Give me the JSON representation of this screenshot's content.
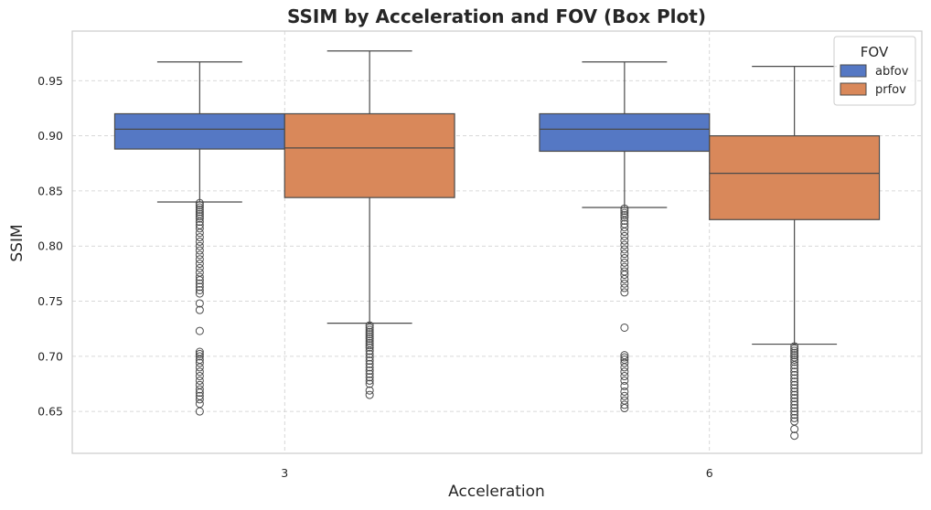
{
  "chart_data": {
    "type": "box",
    "title": "SSIM by Acceleration and FOV (Box Plot)",
    "xlabel": "Acceleration",
    "ylabel": "SSIM",
    "categories": [
      "3",
      "6"
    ],
    "ylim": [
      0.612,
      0.995
    ],
    "yticks": [
      0.65,
      0.7,
      0.75,
      0.8,
      0.85,
      0.9,
      0.95
    ],
    "ytick_labels": [
      "0.65",
      "0.70",
      "0.75",
      "0.80",
      "0.85",
      "0.90",
      "0.95"
    ],
    "grid": true,
    "legend": {
      "title": "FOV",
      "placement": "top-right"
    },
    "colors": {
      "abfov": "#5578c4",
      "prfov": "#d9885a",
      "line": "#4a4a4a",
      "grid": "#cccccc",
      "frame": "#cccccc"
    },
    "series": [
      {
        "name": "abfov",
        "boxes": [
          {
            "category": "3",
            "whisker_low": 0.84,
            "q1": 0.888,
            "median": 0.906,
            "q3": 0.92,
            "whisker_high": 0.967,
            "outliers": [
              0.839,
              0.837,
              0.835,
              0.833,
              0.831,
              0.829,
              0.827,
              0.825,
              0.822,
              0.819,
              0.816,
              0.812,
              0.808,
              0.804,
              0.8,
              0.796,
              0.792,
              0.788,
              0.784,
              0.78,
              0.776,
              0.772,
              0.769,
              0.766,
              0.763,
              0.76,
              0.757,
              0.748,
              0.742,
              0.723,
              0.704,
              0.702,
              0.7,
              0.697,
              0.694,
              0.69,
              0.686,
              0.682,
              0.678,
              0.674,
              0.67,
              0.667,
              0.664,
              0.661,
              0.657,
              0.65
            ]
          },
          {
            "category": "6",
            "whisker_low": 0.835,
            "q1": 0.886,
            "median": 0.906,
            "q3": 0.92,
            "whisker_high": 0.967,
            "outliers": [
              0.834,
              0.832,
              0.83,
              0.828,
              0.826,
              0.823,
              0.82,
              0.817,
              0.813,
              0.809,
              0.805,
              0.801,
              0.797,
              0.793,
              0.789,
              0.785,
              0.781,
              0.777,
              0.774,
              0.77,
              0.766,
              0.762,
              0.758,
              0.726,
              0.701,
              0.699,
              0.697,
              0.694,
              0.69,
              0.686,
              0.682,
              0.678,
              0.673,
              0.668,
              0.664,
              0.66,
              0.656,
              0.653
            ]
          }
        ]
      },
      {
        "name": "prfov",
        "boxes": [
          {
            "category": "3",
            "whisker_low": 0.73,
            "q1": 0.844,
            "median": 0.889,
            "q3": 0.92,
            "whisker_high": 0.977,
            "outliers": [
              0.728,
              0.726,
              0.724,
              0.722,
              0.72,
              0.718,
              0.716,
              0.714,
              0.712,
              0.71,
              0.708,
              0.705,
              0.702,
              0.699,
              0.696,
              0.693,
              0.69,
              0.687,
              0.684,
              0.681,
              0.678,
              0.675,
              0.669,
              0.665
            ]
          },
          {
            "category": "6",
            "whisker_low": 0.711,
            "q1": 0.824,
            "median": 0.866,
            "q3": 0.9,
            "whisker_high": 0.963,
            "outliers": [
              0.709,
              0.707,
              0.705,
              0.703,
              0.701,
              0.699,
              0.697,
              0.695,
              0.692,
              0.689,
              0.686,
              0.683,
              0.68,
              0.677,
              0.674,
              0.671,
              0.668,
              0.665,
              0.662,
              0.659,
              0.656,
              0.653,
              0.65,
              0.647,
              0.644,
              0.641,
              0.634,
              0.628
            ]
          }
        ]
      }
    ]
  }
}
